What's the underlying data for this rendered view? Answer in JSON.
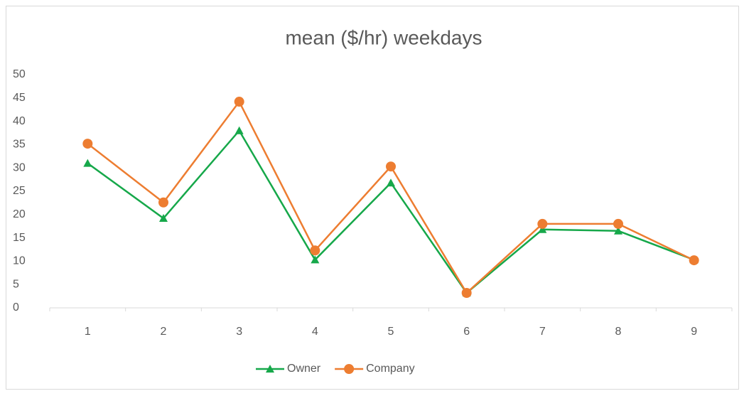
{
  "chart_data": {
    "type": "line",
    "title": "mean ($/hr) weekdays",
    "categories": [
      "1",
      "2",
      "3",
      "4",
      "5",
      "6",
      "7",
      "8",
      "9"
    ],
    "series": [
      {
        "name": "Owner",
        "color": "#16a84a",
        "marker": "triangle",
        "values": [
          31,
          19.2,
          38,
          10.3,
          26.8,
          3.2,
          16.8,
          16.5,
          10.3
        ]
      },
      {
        "name": "Company",
        "color": "#ed7d31",
        "marker": "circle",
        "values": [
          35.2,
          22.6,
          44.2,
          12.3,
          30.3,
          3.2,
          18,
          18,
          10.2
        ]
      }
    ],
    "ylim": [
      0,
      50
    ],
    "yticks": [
      0,
      5,
      10,
      15,
      20,
      25,
      30,
      35,
      40,
      45,
      50
    ],
    "grid": false,
    "legend": "bottom"
  }
}
